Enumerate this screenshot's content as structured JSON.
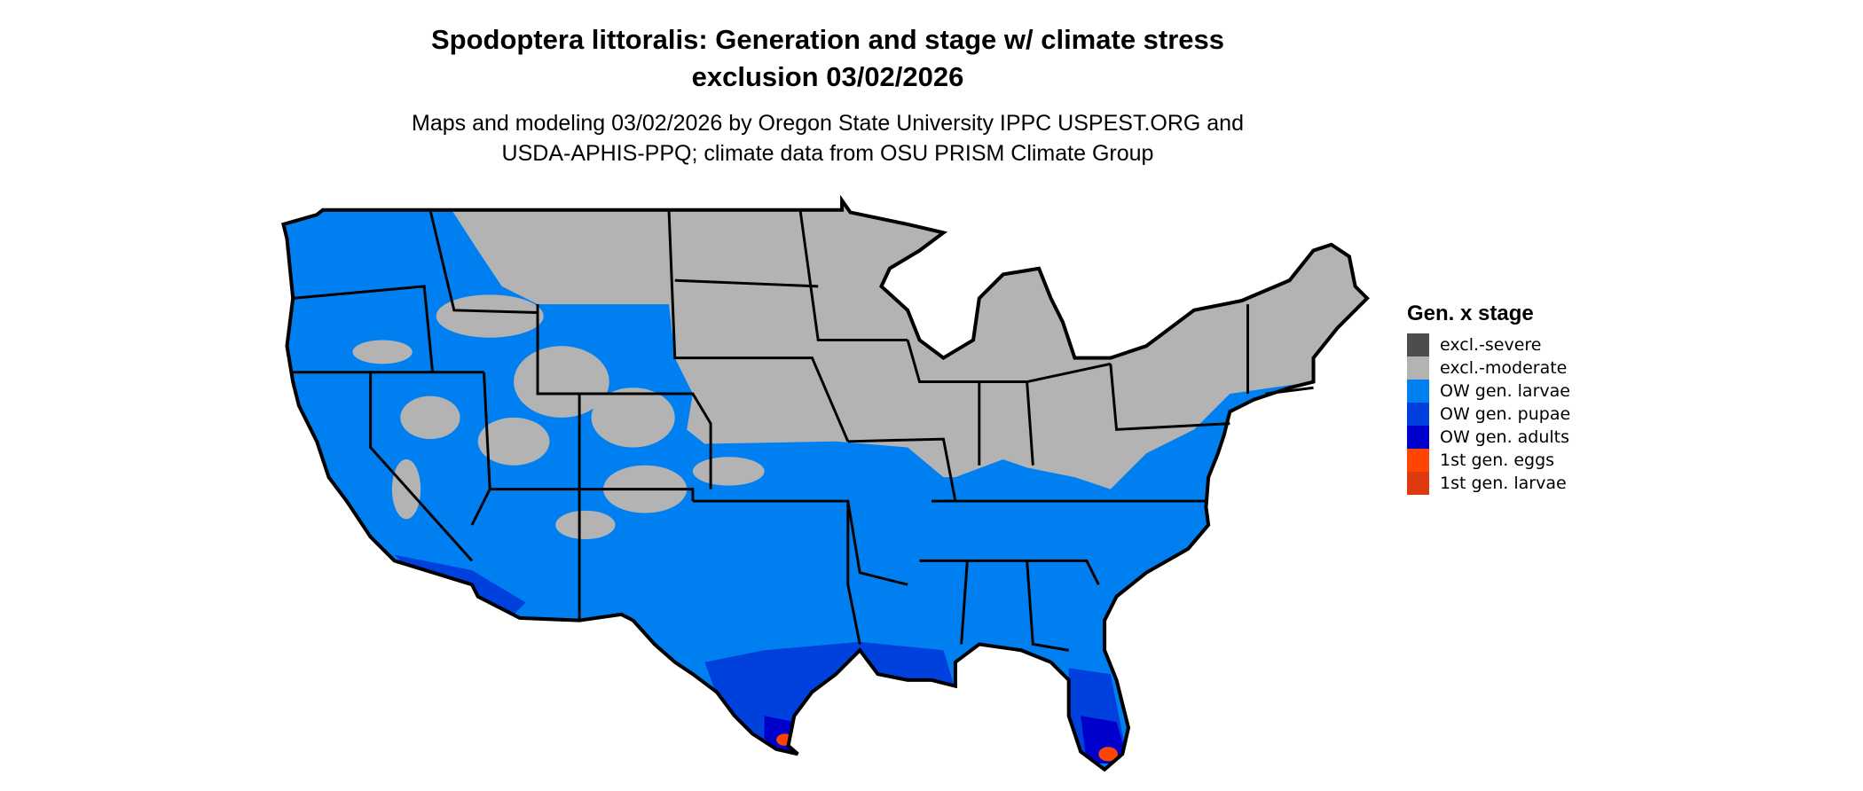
{
  "title": {
    "line1": "Spodoptera littoralis: Generation and stage w/ climate stress",
    "line2": "exclusion 03/02/2026"
  },
  "subtitle": {
    "line1": "Maps and modeling 03/02/2026 by Oregon State University IPPC USPEST.ORG and",
    "line2": "USDA-APHIS-PPQ; climate data from OSU PRISM Climate Group"
  },
  "legend": {
    "title": "Gen. x stage",
    "items": [
      {
        "label": "excl.-severe",
        "color": "#4d4d4d"
      },
      {
        "label": "excl.-moderate",
        "color": "#b3b3b3"
      },
      {
        "label": "OW gen. larvae",
        "color": "#0080f0"
      },
      {
        "label": "OW gen. pupae",
        "color": "#0040dd"
      },
      {
        "label": "OW gen. adults",
        "color": "#0000cc"
      },
      {
        "label": "1st gen. eggs",
        "color": "#ff4500"
      },
      {
        "label": "1st gen. larvae",
        "color": "#dd3a10"
      }
    ]
  }
}
